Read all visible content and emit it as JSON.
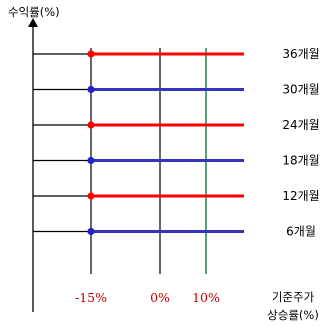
{
  "chart_data": {
    "type": "line",
    "ylabel": "수익률(%)",
    "xlabel_lines": [
      "기준주가",
      "상승률(%)"
    ],
    "x_ticks": [
      {
        "label": "-15%",
        "value": -15
      },
      {
        "label": "0%",
        "value": 0
      },
      {
        "label": "10%",
        "value": 10
      }
    ],
    "series": [
      {
        "name": "36개월",
        "color": "#ff0000",
        "marker": "#ff0000"
      },
      {
        "name": "30개월",
        "color": "#3333bb",
        "marker": "#2222cc"
      },
      {
        "name": "24개월",
        "color": "#ff0000",
        "marker": "#ff0000"
      },
      {
        "name": "18개월",
        "color": "#3333bb",
        "marker": "#2222cc"
      },
      {
        "name": "12개월",
        "color": "#ff0000",
        "marker": "#ff0000"
      },
      {
        "name": "6개월",
        "color": "#3333bb",
        "marker": "#2222cc"
      }
    ],
    "tick_label_color": "#cc0000",
    "highlight_line_color": "#2e8b57"
  }
}
